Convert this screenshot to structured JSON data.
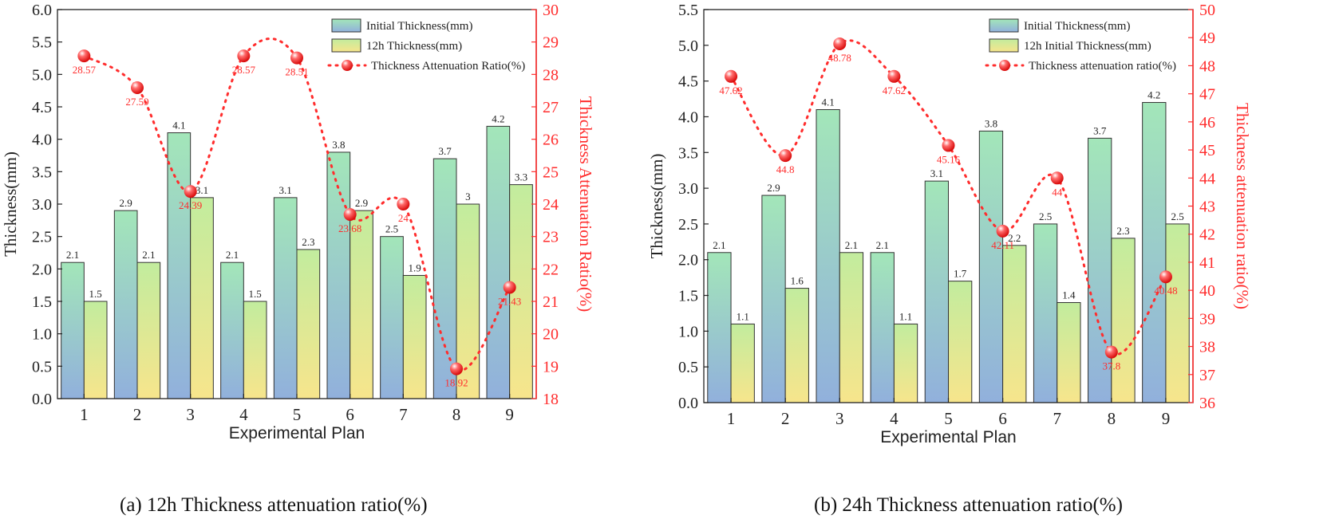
{
  "chart_data": [
    {
      "type": "bar",
      "panel": "a",
      "caption": "(a) 12h Thickness attenuation ratio(%)",
      "xlabel": "Experimental Plan",
      "ylabel": "Thickness(mm)",
      "y2label": "Thickness Attenuation Ratio(%)",
      "categories": [
        "1",
        "2",
        "3",
        "4",
        "5",
        "6",
        "7",
        "8",
        "9"
      ],
      "ylim": [
        0,
        6
      ],
      "ystep": 0.5,
      "y2lim": [
        18,
        30
      ],
      "y2step": 1,
      "series": [
        {
          "name": "Initial Thickness(mm)",
          "type": "bar",
          "axis": "left",
          "values": [
            2.1,
            2.9,
            4.1,
            2.1,
            3.1,
            3.8,
            2.5,
            3.7,
            4.2
          ],
          "labels": [
            "2.1",
            "2.9",
            "4.1",
            "2.1",
            "3.1",
            "3.8",
            "2.5",
            "3.7",
            "4.2"
          ]
        },
        {
          "name": "12h Thickness(mm)",
          "type": "bar",
          "axis": "left",
          "values": [
            1.5,
            2.1,
            3.1,
            1.5,
            2.3,
            2.9,
            1.9,
            3.0,
            3.3
          ],
          "labels": [
            "1.5",
            "2.1",
            "3.1",
            "1.5",
            "2.3",
            "2.9",
            "1.9",
            "3",
            "3.3"
          ]
        },
        {
          "name": "Thickness Attenuation Ratio(%)",
          "type": "line",
          "axis": "right",
          "values": [
            28.57,
            27.59,
            24.39,
            28.57,
            28.51,
            23.68,
            24.0,
            18.92,
            21.43
          ],
          "labels": [
            "28.57",
            "27.59",
            "24.39",
            "28.57",
            "28.51",
            "23.68",
            "24",
            "18.92",
            "21.43"
          ]
        }
      ],
      "legend": "top-right",
      "colors": {
        "bar1_top": "#9fe3b8",
        "bar1_bottom": "#93b4dc",
        "bar2_top": "#c4ec9c",
        "bar2_bottom": "#f6e38a",
        "line": "#ff2d2d",
        "axis_right": "#ff2d2d"
      }
    },
    {
      "type": "bar",
      "panel": "b",
      "caption": "(b) 24h Thickness attenuation ratio(%)",
      "xlabel": "Experimental Plan",
      "ylabel": "Thickness(mm)",
      "y2label": "Thickness attenuation ratio(%)",
      "categories": [
        "1",
        "2",
        "3",
        "4",
        "5",
        "6",
        "7",
        "8",
        "9"
      ],
      "ylim": [
        0,
        5.5
      ],
      "ystep": 0.5,
      "y2lim": [
        36,
        50
      ],
      "y2step": 1,
      "series": [
        {
          "name": "Initial Thickness(mm)",
          "type": "bar",
          "axis": "left",
          "values": [
            2.1,
            2.9,
            4.1,
            2.1,
            3.1,
            3.8,
            2.5,
            3.7,
            4.2
          ],
          "labels": [
            "2.1",
            "2.9",
            "4.1",
            "2.1",
            "3.1",
            "3.8",
            "2.5",
            "3.7",
            "4.2"
          ]
        },
        {
          "name": "12h Initial Thickness(mm)",
          "type": "bar",
          "axis": "left",
          "values": [
            1.1,
            1.6,
            2.1,
            1.1,
            1.7,
            2.2,
            1.4,
            2.3,
            2.5
          ],
          "labels": [
            "1.1",
            "1.6",
            "2.1",
            "1.1",
            "1.7",
            "2.2",
            "1.4",
            "2.3",
            "2.5"
          ]
        },
        {
          "name": "Thickness attenuation ratio(%)",
          "type": "line",
          "axis": "right",
          "values": [
            47.62,
            44.8,
            48.78,
            47.62,
            45.16,
            42.11,
            44.0,
            37.8,
            40.48
          ],
          "labels": [
            "47.62",
            "44.8",
            "48.78",
            "47.62",
            "45.16",
            "42.11",
            "44",
            "37.8",
            "40.48"
          ]
        }
      ],
      "legend": "top-right",
      "colors": {
        "bar1_top": "#9fe3b8",
        "bar1_bottom": "#93b4dc",
        "bar2_top": "#c4ec9c",
        "bar2_bottom": "#f6e38a",
        "line": "#ff2d2d",
        "axis_right": "#ff2d2d"
      }
    }
  ]
}
